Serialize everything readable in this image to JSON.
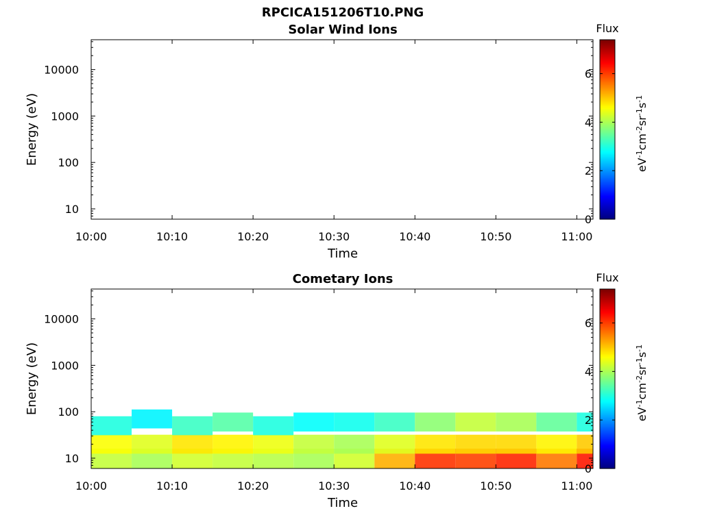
{
  "figure_title": "RPCICA151206T10.PNG",
  "chart_data": [
    {
      "type": "heatmap",
      "title": "Solar Wind Ions",
      "xlabel": "Time",
      "ylabel": "Energy (eV)",
      "x_ticks": [
        "10:00",
        "10:10",
        "10:20",
        "10:30",
        "10:40",
        "10:50",
        "11:00"
      ],
      "xlim": [
        "10:00",
        "11:02"
      ],
      "y_scale": "log",
      "y_ticks": [
        10,
        100,
        1000,
        10000
      ],
      "ylim": [
        6,
        44000
      ],
      "colorbar": {
        "label": "Flux",
        "units": "eV-1cm-2sr-1s-1",
        "ticks": [
          0,
          2,
          4,
          6
        ],
        "range": [
          0,
          7.4
        ],
        "colormap": "jet"
      },
      "cells": []
    },
    {
      "type": "heatmap",
      "title": "Cometary Ions",
      "xlabel": "Time",
      "ylabel": "Energy (eV)",
      "x_ticks": [
        "10:00",
        "10:10",
        "10:20",
        "10:30",
        "10:40",
        "10:50",
        "11:00"
      ],
      "xlim": [
        "10:00",
        "11:02"
      ],
      "y_scale": "log",
      "y_ticks": [
        10,
        100,
        1000,
        10000
      ],
      "ylim": [
        6,
        44000
      ],
      "colorbar": {
        "label": "Flux",
        "units": "eV-1cm-2sr-1s-1",
        "ticks": [
          0,
          2,
          4,
          6
        ],
        "range": [
          0,
          7.4
        ],
        "colormap": "jet"
      },
      "cells": [
        {
          "t": "10:00",
          "e": 10,
          "f": 4.2
        },
        {
          "t": "10:00",
          "e": 20,
          "f": 4.6
        },
        {
          "t": "10:00",
          "e": 50,
          "f": 3.0
        },
        {
          "t": "10:05",
          "e": 10,
          "f": 4.0
        },
        {
          "t": "10:05",
          "e": 20,
          "f": 4.4
        },
        {
          "t": "10:05",
          "e": 70,
          "f": 2.7
        },
        {
          "t": "10:10",
          "e": 10,
          "f": 4.3
        },
        {
          "t": "10:10",
          "e": 20,
          "f": 4.8
        },
        {
          "t": "10:10",
          "e": 50,
          "f": 3.2
        },
        {
          "t": "10:15",
          "e": 10,
          "f": 4.2
        },
        {
          "t": "10:15",
          "e": 20,
          "f": 4.7
        },
        {
          "t": "10:15",
          "e": 60,
          "f": 3.4
        },
        {
          "t": "10:20",
          "e": 10,
          "f": 4.1
        },
        {
          "t": "10:20",
          "e": 20,
          "f": 4.5
        },
        {
          "t": "10:20",
          "e": 50,
          "f": 3.0
        },
        {
          "t": "10:25",
          "e": 10,
          "f": 4.0
        },
        {
          "t": "10:25",
          "e": 20,
          "f": 4.2
        },
        {
          "t": "10:25",
          "e": 60,
          "f": 2.8
        },
        {
          "t": "10:30",
          "e": 10,
          "f": 4.3
        },
        {
          "t": "10:30",
          "e": 20,
          "f": 4.0
        },
        {
          "t": "10:30",
          "e": 60,
          "f": 2.9
        },
        {
          "t": "10:35",
          "e": 10,
          "f": 5.2
        },
        {
          "t": "10:35",
          "e": 20,
          "f": 4.4
        },
        {
          "t": "10:35",
          "e": 60,
          "f": 3.2
        },
        {
          "t": "10:40",
          "e": 10,
          "f": 6.1
        },
        {
          "t": "10:40",
          "e": 20,
          "f": 4.8
        },
        {
          "t": "10:40",
          "e": 60,
          "f": 3.8
        },
        {
          "t": "10:45",
          "e": 10,
          "f": 6.0
        },
        {
          "t": "10:45",
          "e": 20,
          "f": 4.9
        },
        {
          "t": "10:45",
          "e": 60,
          "f": 4.2
        },
        {
          "t": "10:50",
          "e": 10,
          "f": 6.2
        },
        {
          "t": "10:50",
          "e": 20,
          "f": 4.9
        },
        {
          "t": "10:50",
          "e": 60,
          "f": 4.0
        },
        {
          "t": "10:55",
          "e": 10,
          "f": 5.6
        },
        {
          "t": "10:55",
          "e": 20,
          "f": 4.7
        },
        {
          "t": "10:55",
          "e": 60,
          "f": 3.5
        },
        {
          "t": "11:00",
          "e": 10,
          "f": 6.3
        },
        {
          "t": "11:00",
          "e": 20,
          "f": 5.0
        },
        {
          "t": "11:00",
          "e": 60,
          "f": 3.0
        }
      ]
    }
  ]
}
